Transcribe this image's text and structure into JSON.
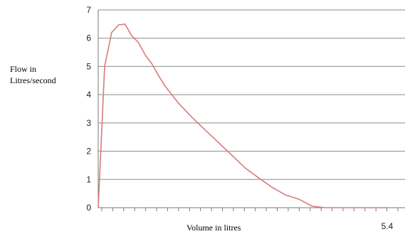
{
  "chart_data": {
    "type": "line",
    "ylabel_lines": [
      "Flow in",
      "Litres/second"
    ],
    "xlabel": "Volume in litres",
    "x_end_label": "5.4",
    "ylim": [
      0,
      7
    ],
    "xlim": [
      0,
      5.4
    ],
    "yticks": [
      "0",
      "1",
      "2",
      "3",
      "4",
      "5",
      "6",
      "7"
    ],
    "grid": true,
    "line_color": "#d97b7b",
    "grid_color": "#8c8c8c",
    "series": [
      {
        "x": [
          0,
          0.12,
          0.25,
          0.38,
          0.5,
          0.62,
          0.75,
          0.88,
          1.0,
          1.12,
          1.25,
          1.5,
          1.75,
          2.0,
          2.25,
          2.5,
          2.75,
          3.0,
          3.25,
          3.5,
          3.75,
          4.0,
          4.25,
          4.5,
          4.75,
          5.0,
          5.2,
          5.4
        ],
        "y": [
          0,
          5.0,
          6.2,
          6.47,
          6.5,
          6.1,
          5.85,
          5.4,
          5.1,
          4.7,
          4.3,
          3.7,
          3.2,
          2.75,
          2.3,
          1.85,
          1.4,
          1.05,
          0.72,
          0.45,
          0.3,
          0.05,
          0,
          0,
          0,
          0,
          0,
          0
        ]
      }
    ]
  }
}
